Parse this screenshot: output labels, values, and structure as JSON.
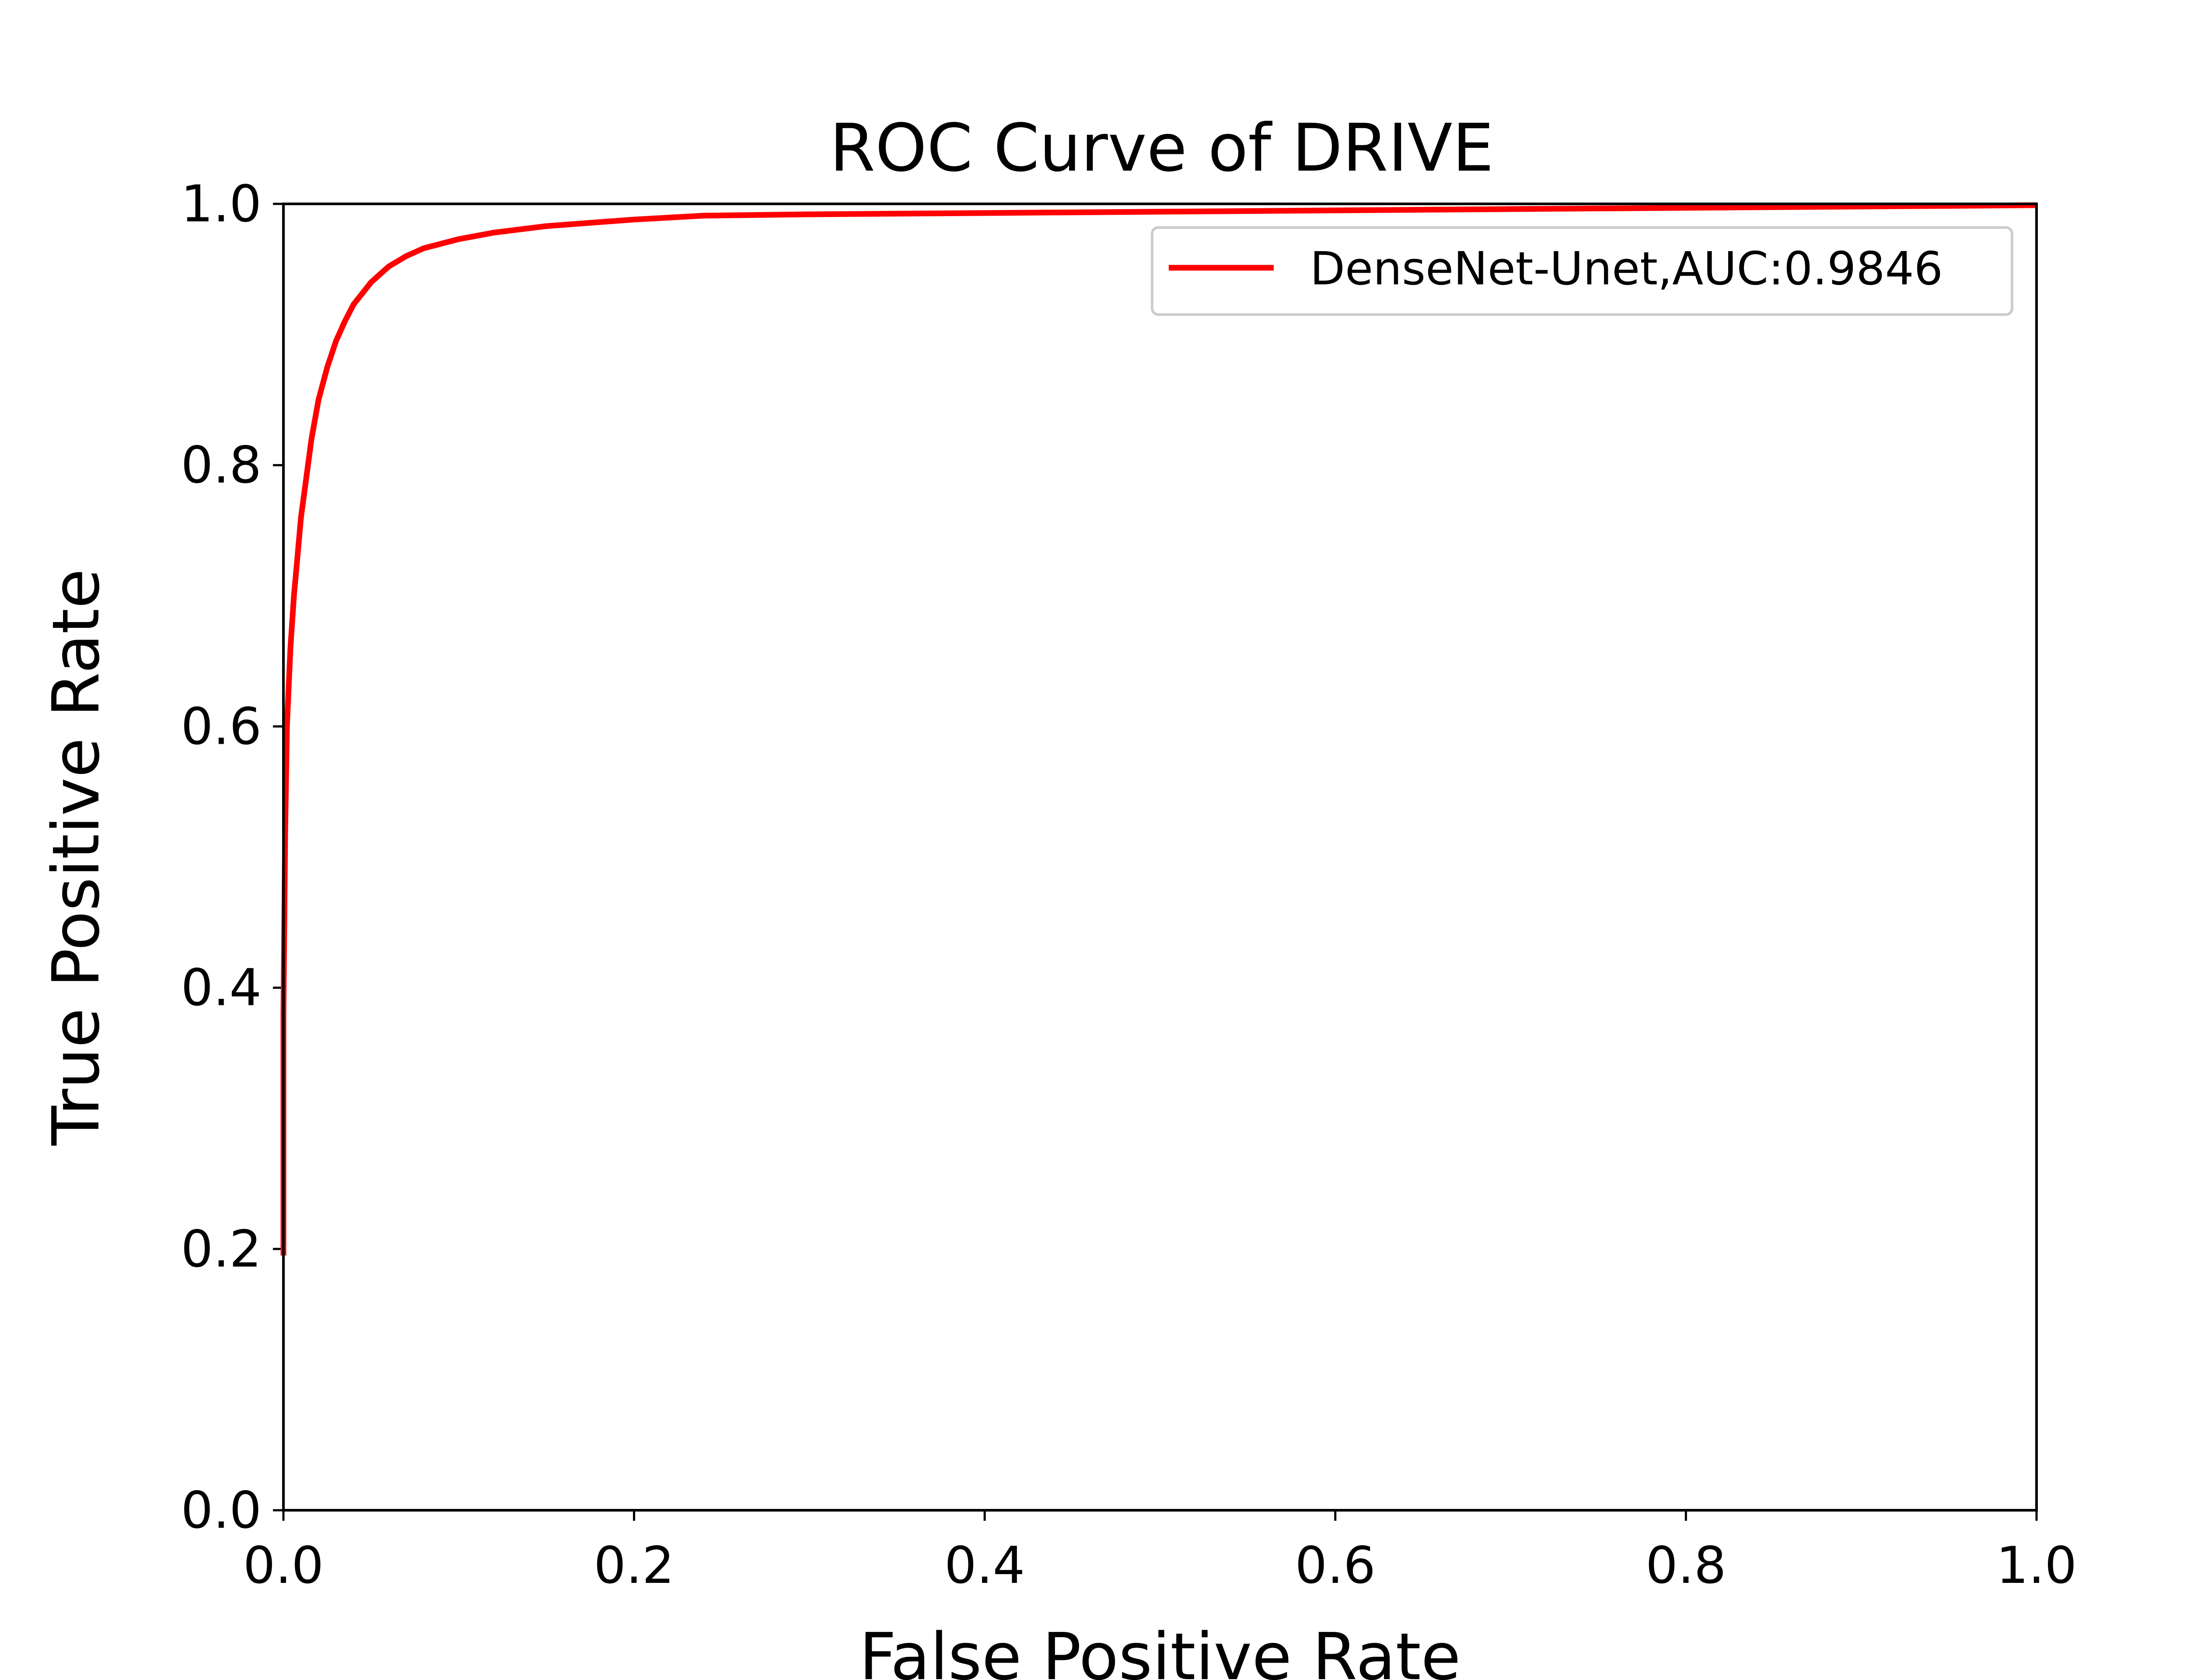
{
  "chart_data": {
    "type": "line",
    "title": "ROC Curve of DRIVE",
    "xlabel": "False Positive Rate",
    "ylabel": "True Positive Rate",
    "xlim": [
      0.0,
      1.0
    ],
    "ylim": [
      0.0,
      1.0
    ],
    "xticks": [
      "0.0",
      "0.2",
      "0.4",
      "0.6",
      "0.8",
      "1.0"
    ],
    "yticks": [
      "0.0",
      "0.2",
      "0.4",
      "0.6",
      "0.8",
      "1.0"
    ],
    "grid": false,
    "legend_position": "top-right",
    "series": [
      {
        "name": "DenseNet-Unet,AUC:0.9846",
        "color": "#ff0000",
        "x": [
          0.0,
          0.0,
          0.001,
          0.002,
          0.004,
          0.006,
          0.008,
          0.01,
          0.013,
          0.016,
          0.02,
          0.025,
          0.03,
          0.035,
          0.04,
          0.05,
          0.06,
          0.07,
          0.08,
          0.1,
          0.12,
          0.15,
          0.2,
          0.24,
          0.3,
          0.4,
          0.5,
          0.6,
          0.7,
          0.8,
          0.9,
          1.0
        ],
        "y": [
          0.195,
          0.38,
          0.52,
          0.6,
          0.66,
          0.7,
          0.73,
          0.76,
          0.79,
          0.82,
          0.85,
          0.875,
          0.895,
          0.91,
          0.923,
          0.94,
          0.952,
          0.96,
          0.966,
          0.973,
          0.978,
          0.983,
          0.988,
          0.991,
          0.992,
          0.993,
          0.994,
          0.995,
          0.996,
          0.997,
          0.998,
          0.999
        ]
      }
    ]
  }
}
